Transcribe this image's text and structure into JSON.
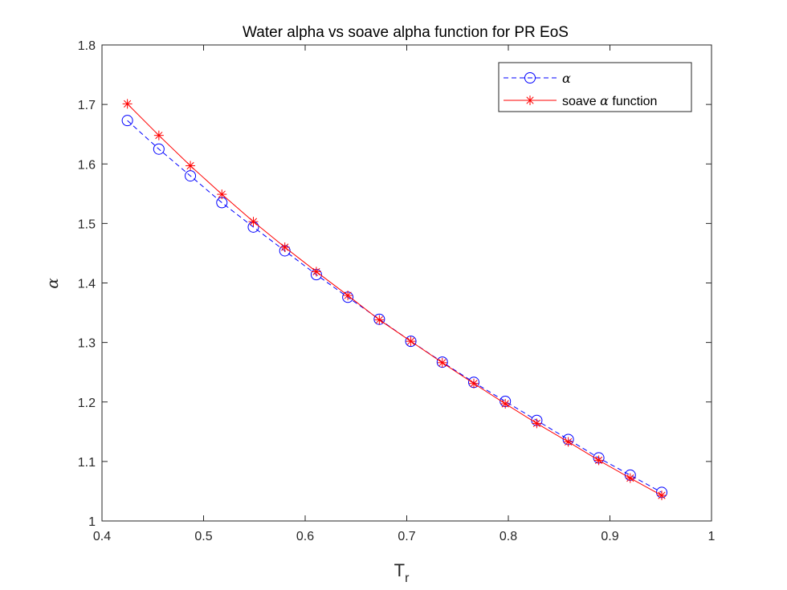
{
  "chart_data": {
    "type": "line",
    "title": "Water alpha vs soave alpha function for PR EoS",
    "xlabel": "T",
    "xlabel_subscript": "r",
    "ylabel": "α",
    "xlim": [
      0.4,
      1
    ],
    "ylim": [
      1,
      1.8
    ],
    "xticks": [
      "0.4",
      "0.5",
      "0.6",
      "0.7",
      "0.8",
      "0.9",
      "1"
    ],
    "yticks": [
      "1",
      "1.1",
      "1.2",
      "1.3",
      "1.4",
      "1.5",
      "1.6",
      "1.7",
      "1.8"
    ],
    "grid": false,
    "legend_position": "top-right",
    "x": [
      0.425,
      0.456,
      0.487,
      0.518,
      0.549,
      0.58,
      0.611,
      0.642,
      0.673,
      0.704,
      0.735,
      0.766,
      0.797,
      0.828,
      0.859,
      0.889,
      0.92,
      0.951
    ],
    "series": [
      {
        "name": "α",
        "legend_label": "α",
        "color": "#0000ff",
        "line_style": "dashed",
        "marker": "circle",
        "values": [
          1.673,
          1.625,
          1.58,
          1.535,
          1.494,
          1.454,
          1.414,
          1.376,
          1.339,
          1.302,
          1.267,
          1.233,
          1.201,
          1.169,
          1.137,
          1.106,
          1.077,
          1.048
        ]
      },
      {
        "name": "soave α function",
        "legend_prefix": "soave ",
        "legend_greek": "α",
        "legend_suffix": " function",
        "color": "#ff0000",
        "line_style": "solid",
        "marker": "asterisk",
        "values": [
          1.701,
          1.648,
          1.597,
          1.549,
          1.503,
          1.46,
          1.419,
          1.379,
          1.338,
          1.302,
          1.266,
          1.231,
          1.197,
          1.164,
          1.133,
          1.102,
          1.072,
          1.043
        ]
      }
    ]
  }
}
